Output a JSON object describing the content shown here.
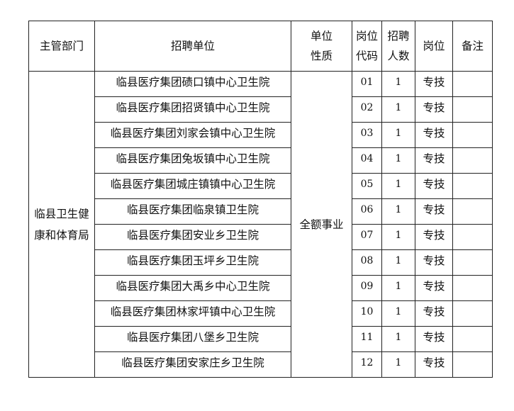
{
  "headers": {
    "dept": "主管部门",
    "unit": "招聘单位",
    "nature_1": "单位",
    "nature_2": "性质",
    "code_1": "岗位",
    "code_2": "代码",
    "count_1": "招聘",
    "count_2": "人数",
    "post": "岗位",
    "remark": "备注"
  },
  "dept_1": "临县卫生健",
  "dept_2": "康和体育局",
  "nature": "全额事业",
  "rows": [
    {
      "unit": "临县医疗集团碛口镇中心卫生院",
      "code": "01",
      "count": "1",
      "post": "专技",
      "remark": ""
    },
    {
      "unit": "临县医疗集团招贤镇中心卫生院",
      "code": "02",
      "count": "1",
      "post": "专技",
      "remark": ""
    },
    {
      "unit": "临县医疗集团刘家会镇中心卫生院",
      "code": "03",
      "count": "1",
      "post": "专技",
      "remark": ""
    },
    {
      "unit": "临县医疗集团兔坂镇中心卫生院",
      "code": "04",
      "count": "1",
      "post": "专技",
      "remark": ""
    },
    {
      "unit": "临县医疗集团城庄镇镇中心卫生院",
      "code": "05",
      "count": "1",
      "post": "专技",
      "remark": ""
    },
    {
      "unit": "临县医疗集团临泉镇卫生院",
      "code": "06",
      "count": "1",
      "post": "专技",
      "remark": ""
    },
    {
      "unit": "临县医疗集团安业乡卫生院",
      "code": "07",
      "count": "1",
      "post": "专技",
      "remark": ""
    },
    {
      "unit": "临县医疗集团玉坪乡卫生院",
      "code": "08",
      "count": "1",
      "post": "专技",
      "remark": ""
    },
    {
      "unit": "临县医疗集团大禹乡中心卫生院",
      "code": "09",
      "count": "1",
      "post": "专技",
      "remark": ""
    },
    {
      "unit": "临县医疗集团林家坪镇中心卫生院",
      "code": "10",
      "count": "1",
      "post": "专技",
      "remark": ""
    },
    {
      "unit": "临县医疗集团八堡乡卫生院",
      "code": "11",
      "count": "1",
      "post": "专技",
      "remark": ""
    },
    {
      "unit": "临县医疗集团安家庄乡卫生院",
      "code": "12",
      "count": "1",
      "post": "专技",
      "remark": ""
    }
  ]
}
